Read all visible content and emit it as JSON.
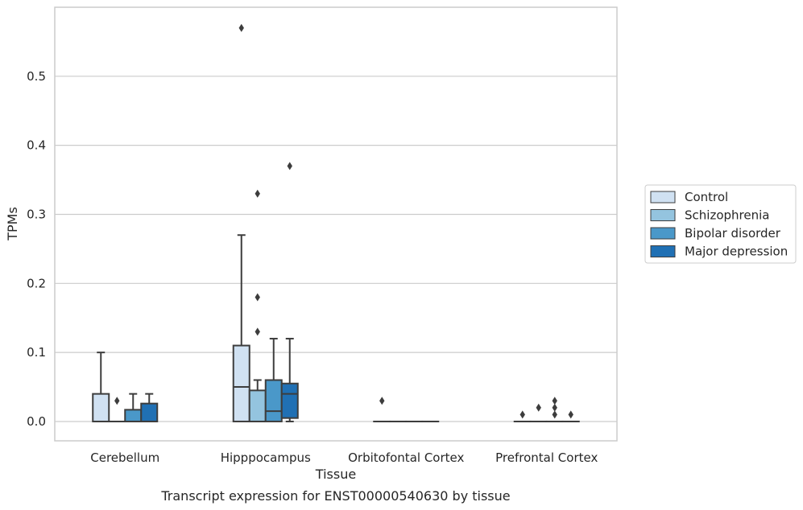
{
  "chart_data": {
    "type": "box",
    "title": "",
    "caption": "Transcript expression for ENST00000540630 by tissue",
    "xlabel": "Tissue",
    "ylabel": "TPMs",
    "ylim": [
      -0.028,
      0.6
    ],
    "yticks": [
      0.0,
      0.1,
      0.2,
      0.3,
      0.4,
      0.5
    ],
    "ytick_labels": [
      "0.0",
      "0.1",
      "0.2",
      "0.3",
      "0.4",
      "0.5"
    ],
    "grid": true,
    "legend_position": "right",
    "categories": [
      "Cerebellum",
      "Hipppocampus",
      "Orbitofontal Cortex",
      "Prefrontal Cortex"
    ],
    "series": [
      {
        "name": "Control",
        "color": "#d0e1f2",
        "boxes": [
          {
            "whislo": 0.0,
            "q1": 0.0,
            "med": 0.0,
            "q3": 0.04,
            "whishi": 0.1,
            "fliers": []
          },
          {
            "whislo": 0.0,
            "q1": 0.0,
            "med": 0.05,
            "q3": 0.11,
            "whishi": 0.27,
            "fliers": [
              0.57
            ]
          },
          {
            "whislo": 0.0,
            "q1": 0.0,
            "med": 0.0,
            "q3": 0.0,
            "whishi": 0.0,
            "fliers": [
              0.03
            ]
          },
          {
            "whislo": 0.0,
            "q1": 0.0,
            "med": 0.0,
            "q3": 0.0,
            "whishi": 0.0,
            "fliers": [
              0.01
            ]
          }
        ]
      },
      {
        "name": "Schizophrenia",
        "color": "#94c4df",
        "boxes": [
          {
            "whislo": 0.0,
            "q1": 0.0,
            "med": 0.0,
            "q3": 0.0,
            "whishi": 0.0,
            "fliers": [
              0.03
            ]
          },
          {
            "whislo": 0.0,
            "q1": 0.0,
            "med": 0.0,
            "q3": 0.045,
            "whishi": 0.06,
            "fliers": [
              0.13,
              0.18,
              0.33
            ]
          },
          {
            "whislo": 0.0,
            "q1": 0.0,
            "med": 0.0,
            "q3": 0.0,
            "whishi": 0.0,
            "fliers": []
          },
          {
            "whislo": 0.0,
            "q1": 0.0,
            "med": 0.0,
            "q3": 0.0,
            "whishi": 0.0,
            "fliers": [
              0.02
            ]
          }
        ]
      },
      {
        "name": "Bipolar disorder",
        "color": "#4a98c9",
        "boxes": [
          {
            "whislo": 0.0,
            "q1": 0.0,
            "med": 0.0,
            "q3": 0.017,
            "whishi": 0.04,
            "fliers": []
          },
          {
            "whislo": 0.0,
            "q1": 0.0,
            "med": 0.015,
            "q3": 0.06,
            "whishi": 0.12,
            "fliers": []
          },
          {
            "whislo": 0.0,
            "q1": 0.0,
            "med": 0.0,
            "q3": 0.0,
            "whishi": 0.0,
            "fliers": []
          },
          {
            "whislo": 0.0,
            "q1": 0.0,
            "med": 0.0,
            "q3": 0.0,
            "whishi": 0.0,
            "fliers": [
              0.01,
              0.02,
              0.03
            ]
          }
        ]
      },
      {
        "name": "Major depression",
        "color": "#2070b4",
        "boxes": [
          {
            "whislo": 0.0,
            "q1": 0.0,
            "med": 0.0,
            "q3": 0.026,
            "whishi": 0.04,
            "fliers": []
          },
          {
            "whislo": 0.0,
            "q1": 0.005,
            "med": 0.04,
            "q3": 0.055,
            "whishi": 0.12,
            "fliers": [
              0.37
            ]
          },
          {
            "whislo": 0.0,
            "q1": 0.0,
            "med": 0.0,
            "q3": 0.0,
            "whishi": 0.0,
            "fliers": []
          },
          {
            "whislo": 0.0,
            "q1": 0.0,
            "med": 0.0,
            "q3": 0.0,
            "whishi": 0.0,
            "fliers": [
              0.01
            ]
          }
        ]
      }
    ]
  }
}
